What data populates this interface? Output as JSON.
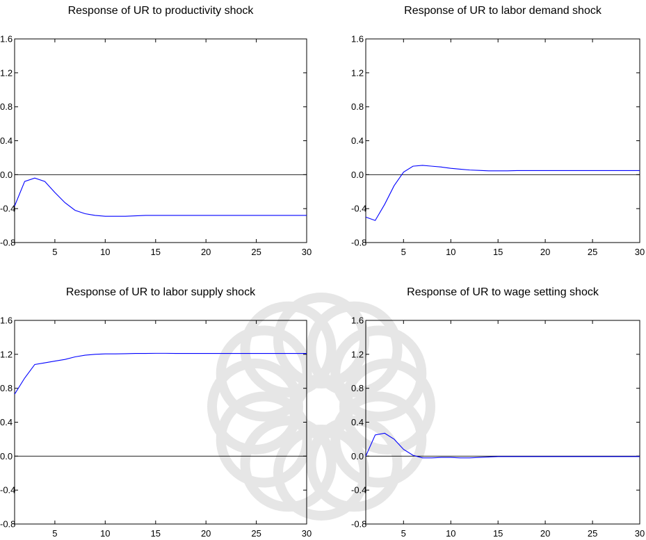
{
  "colors": {
    "series": "#0000ff",
    "axis": "#000000",
    "watermark": "#e6e6e6"
  },
  "watermark": {
    "type": "decorative-star-pattern"
  },
  "chart_data": [
    {
      "type": "line",
      "title": "Response of UR to productivity shock",
      "xlabel": "",
      "ylabel": "",
      "xlim": [
        1,
        30
      ],
      "ylim": [
        -0.8,
        1.6
      ],
      "x_ticks": [
        5,
        10,
        15,
        20,
        25,
        30
      ],
      "y_ticks": [
        -0.8,
        -0.4,
        0.0,
        0.4,
        0.8,
        1.2,
        1.6
      ],
      "y_tick_labels": [
        "-0.8",
        "-0.4",
        "0.0",
        "0.4",
        "0.8",
        "1.2",
        "1.6"
      ],
      "grid": false,
      "zero_line": true,
      "series": [
        {
          "x": [
            1,
            2,
            3,
            4,
            5,
            6,
            7,
            8,
            9,
            10,
            11,
            12,
            13,
            14,
            15,
            16,
            17,
            18,
            19,
            20,
            21,
            22,
            23,
            24,
            25,
            26,
            27,
            28,
            29,
            30
          ],
          "values": [
            -0.37,
            -0.08,
            -0.04,
            -0.08,
            -0.21,
            -0.33,
            -0.42,
            -0.46,
            -0.48,
            -0.49,
            -0.49,
            -0.49,
            -0.485,
            -0.48,
            -0.48,
            -0.48,
            -0.48,
            -0.48,
            -0.48,
            -0.48,
            -0.48,
            -0.48,
            -0.48,
            -0.48,
            -0.48,
            -0.48,
            -0.48,
            -0.48,
            -0.48,
            -0.48
          ]
        }
      ]
    },
    {
      "type": "line",
      "title": "Response of UR to labor demand shock",
      "xlabel": "",
      "ylabel": "",
      "xlim": [
        1,
        30
      ],
      "ylim": [
        -0.8,
        1.6
      ],
      "x_ticks": [
        5,
        10,
        15,
        20,
        25,
        30
      ],
      "y_ticks": [
        -0.8,
        -0.4,
        0.0,
        0.4,
        0.8,
        1.2,
        1.6
      ],
      "y_tick_labels": [
        "-0.8",
        "-0.4",
        "0.0",
        "0.4",
        "0.8",
        "1.2",
        "1.6"
      ],
      "grid": false,
      "zero_line": true,
      "series": [
        {
          "x": [
            1,
            2,
            3,
            4,
            5,
            6,
            7,
            8,
            9,
            10,
            11,
            12,
            13,
            14,
            15,
            16,
            17,
            18,
            19,
            20,
            21,
            22,
            23,
            24,
            25,
            26,
            27,
            28,
            29,
            30
          ],
          "values": [
            -0.5,
            -0.54,
            -0.35,
            -0.13,
            0.03,
            0.1,
            0.11,
            0.1,
            0.09,
            0.075,
            0.065,
            0.055,
            0.05,
            0.045,
            0.045,
            0.045,
            0.048,
            0.048,
            0.048,
            0.048,
            0.048,
            0.048,
            0.048,
            0.048,
            0.048,
            0.048,
            0.048,
            0.048,
            0.048,
            0.048
          ]
        }
      ]
    },
    {
      "type": "line",
      "title": "Response of UR to labor supply shock",
      "xlabel": "",
      "ylabel": "",
      "xlim": [
        1,
        30
      ],
      "ylim": [
        -0.8,
        1.6
      ],
      "x_ticks": [
        5,
        10,
        15,
        20,
        25,
        30
      ],
      "y_ticks": [
        -0.8,
        -0.4,
        0.0,
        0.4,
        0.8,
        1.2,
        1.6
      ],
      "y_tick_labels": [
        "-0.8",
        "-0.4",
        "0.0",
        "0.4",
        "0.8",
        "1.2",
        "1.6"
      ],
      "grid": false,
      "zero_line": true,
      "series": [
        {
          "x": [
            1,
            2,
            3,
            4,
            5,
            6,
            7,
            8,
            9,
            10,
            11,
            12,
            13,
            14,
            15,
            16,
            17,
            18,
            19,
            20,
            21,
            22,
            23,
            24,
            25,
            26,
            27,
            28,
            29,
            30
          ],
          "values": [
            0.73,
            0.92,
            1.08,
            1.1,
            1.12,
            1.14,
            1.17,
            1.19,
            1.2,
            1.205,
            1.205,
            1.207,
            1.21,
            1.21,
            1.212,
            1.212,
            1.21,
            1.21,
            1.21,
            1.21,
            1.21,
            1.21,
            1.21,
            1.21,
            1.21,
            1.21,
            1.21,
            1.21,
            1.21,
            1.21
          ]
        }
      ]
    },
    {
      "type": "line",
      "title": "Response of UR to wage setting shock",
      "xlabel": "",
      "ylabel": "",
      "xlim": [
        1,
        30
      ],
      "ylim": [
        -0.8,
        1.6
      ],
      "x_ticks": [
        5,
        10,
        15,
        20,
        25,
        30
      ],
      "y_ticks": [
        -0.8,
        -0.4,
        0.0,
        0.4,
        0.8,
        1.2,
        1.6
      ],
      "y_tick_labels": [
        "-0.8",
        "-0.4",
        "0.0",
        "0.4",
        "0.8",
        "1.2",
        "1.6"
      ],
      "grid": false,
      "zero_line": true,
      "series": [
        {
          "x": [
            1,
            2,
            3,
            4,
            5,
            6,
            7,
            8,
            9,
            10,
            11,
            12,
            13,
            14,
            15,
            16,
            17,
            18,
            19,
            20,
            21,
            22,
            23,
            24,
            25,
            26,
            27,
            28,
            29,
            30
          ],
          "values": [
            0.0,
            0.25,
            0.27,
            0.2,
            0.08,
            0.01,
            -0.02,
            -0.02,
            -0.015,
            -0.015,
            -0.02,
            -0.02,
            -0.015,
            -0.01,
            -0.005,
            -0.005,
            -0.005,
            -0.005,
            -0.005,
            -0.005,
            -0.005,
            -0.005,
            -0.005,
            -0.005,
            -0.005,
            -0.005,
            -0.005,
            -0.005,
            -0.005,
            -0.005
          ]
        }
      ]
    }
  ]
}
